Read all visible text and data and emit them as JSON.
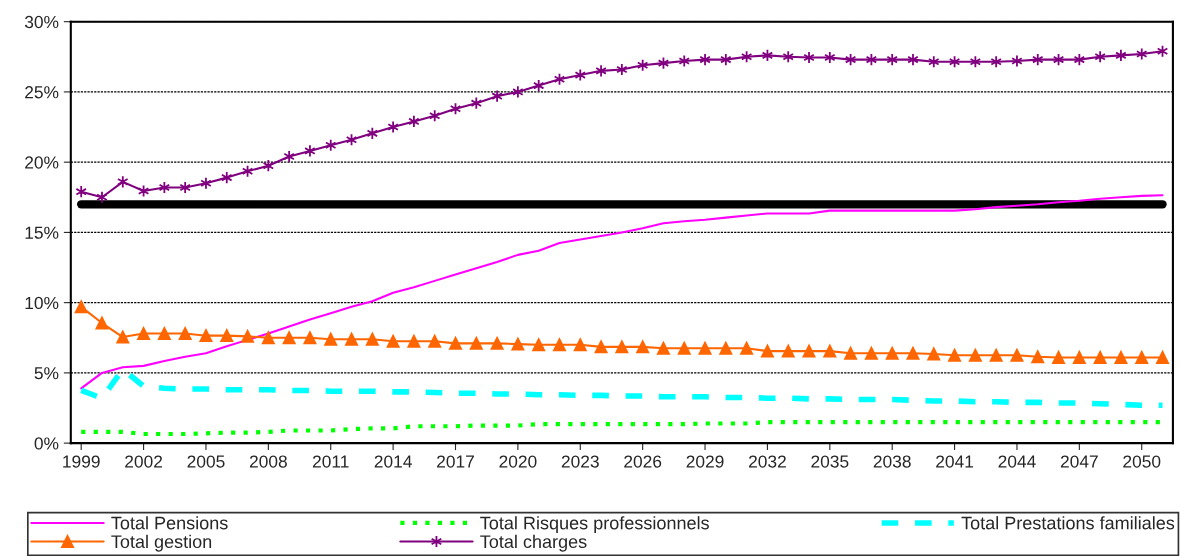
{
  "chart_data": {
    "type": "line",
    "x": [
      1999,
      2000,
      2001,
      2002,
      2003,
      2004,
      2005,
      2006,
      2007,
      2008,
      2009,
      2010,
      2011,
      2012,
      2013,
      2014,
      2015,
      2016,
      2017,
      2018,
      2019,
      2020,
      2021,
      2022,
      2023,
      2024,
      2025,
      2026,
      2027,
      2028,
      2029,
      2030,
      2031,
      2032,
      2033,
      2034,
      2035,
      2036,
      2037,
      2038,
      2039,
      2040,
      2041,
      2042,
      2043,
      2044,
      2045,
      2046,
      2047,
      2048,
      2049,
      2050,
      2051
    ],
    "series": [
      {
        "name": "Total Pensions",
        "color": "#ff00ff",
        "marker": "none",
        "line_style": "solid",
        "values": [
          3.9,
          5.0,
          5.4,
          5.5,
          5.85,
          6.15,
          6.4,
          6.9,
          7.35,
          7.8,
          8.3,
          8.8,
          9.25,
          9.7,
          10.1,
          10.7,
          11.1,
          11.55,
          12.0,
          12.45,
          12.9,
          13.4,
          13.7,
          14.25,
          14.5,
          14.75,
          15.0,
          15.3,
          15.65,
          15.8,
          15.9,
          16.05,
          16.2,
          16.35,
          16.35,
          16.35,
          16.55,
          16.55,
          16.55,
          16.55,
          16.55,
          16.55,
          16.55,
          16.65,
          16.8,
          16.9,
          17.0,
          17.15,
          17.25,
          17.4,
          17.5,
          17.6,
          17.65
        ]
      },
      {
        "name": "Total Risques professionnels",
        "color": "#00ff00",
        "marker": "none",
        "line_style": "dotted",
        "values": [
          0.8,
          0.8,
          0.8,
          0.65,
          0.65,
          0.65,
          0.7,
          0.75,
          0.75,
          0.8,
          0.9,
          0.9,
          0.9,
          1.0,
          1.05,
          1.05,
          1.2,
          1.2,
          1.2,
          1.25,
          1.25,
          1.25,
          1.35,
          1.35,
          1.35,
          1.35,
          1.35,
          1.35,
          1.35,
          1.35,
          1.4,
          1.4,
          1.4,
          1.5,
          1.5,
          1.5,
          1.5,
          1.5,
          1.5,
          1.5,
          1.5,
          1.5,
          1.5,
          1.5,
          1.5,
          1.5,
          1.5,
          1.5,
          1.5,
          1.5,
          1.5,
          1.5,
          1.5
        ]
      },
      {
        "name": "Total Prestations familiales",
        "color": "#00ffff",
        "marker": "none",
        "line_style": "dashed",
        "values": [
          3.75,
          3.2,
          5.25,
          4.05,
          3.9,
          3.85,
          3.85,
          3.8,
          3.8,
          3.8,
          3.75,
          3.75,
          3.7,
          3.7,
          3.7,
          3.65,
          3.65,
          3.6,
          3.55,
          3.55,
          3.5,
          3.5,
          3.45,
          3.45,
          3.4,
          3.4,
          3.35,
          3.35,
          3.3,
          3.3,
          3.3,
          3.25,
          3.25,
          3.2,
          3.2,
          3.15,
          3.15,
          3.1,
          3.1,
          3.1,
          3.05,
          3.0,
          3.0,
          2.95,
          2.95,
          2.9,
          2.9,
          2.85,
          2.85,
          2.8,
          2.75,
          2.7,
          2.7
        ]
      },
      {
        "name": "Total gestion",
        "color": "#ff6600",
        "marker": "triangle",
        "line_style": "solid",
        "values": [
          9.7,
          8.55,
          7.55,
          7.8,
          7.8,
          7.8,
          7.65,
          7.65,
          7.6,
          7.5,
          7.5,
          7.5,
          7.4,
          7.4,
          7.4,
          7.25,
          7.25,
          7.25,
          7.1,
          7.1,
          7.1,
          7.05,
          7.0,
          7.0,
          7.0,
          6.85,
          6.85,
          6.85,
          6.75,
          6.75,
          6.75,
          6.75,
          6.75,
          6.55,
          6.55,
          6.55,
          6.55,
          6.4,
          6.4,
          6.4,
          6.4,
          6.35,
          6.25,
          6.25,
          6.25,
          6.25,
          6.15,
          6.1,
          6.1,
          6.1,
          6.1,
          6.1,
          6.1
        ]
      },
      {
        "name": "Total charges",
        "color": "#800080",
        "marker": "cross",
        "line_style": "solid",
        "values": [
          17.9,
          17.5,
          18.6,
          17.95,
          18.2,
          18.2,
          18.5,
          18.9,
          19.35,
          19.75,
          20.4,
          20.8,
          21.2,
          21.6,
          22.05,
          22.5,
          22.9,
          23.3,
          23.8,
          24.2,
          24.7,
          25.0,
          25.45,
          25.9,
          26.2,
          26.5,
          26.6,
          26.9,
          27.05,
          27.2,
          27.3,
          27.3,
          27.5,
          27.6,
          27.5,
          27.45,
          27.45,
          27.3,
          27.3,
          27.3,
          27.3,
          27.15,
          27.15,
          27.15,
          27.15,
          27.2,
          27.3,
          27.3,
          27.3,
          27.5,
          27.6,
          27.7,
          27.9
        ]
      }
    ],
    "ref_lines": [
      {
        "axis": "y",
        "value": 17,
        "color": "#000000"
      }
    ],
    "xlim": [
      1998.5,
      2051.5
    ],
    "xticks": [
      1999,
      2002,
      2005,
      2008,
      2011,
      2014,
      2017,
      2020,
      2023,
      2026,
      2029,
      2032,
      2035,
      2038,
      2041,
      2044,
      2047,
      2050
    ],
    "ylim": [
      0,
      30
    ],
    "yticks": [
      {
        "value": 0,
        "label": "0%"
      },
      {
        "value": 5,
        "label": "5%"
      },
      {
        "value": 10,
        "label": "10%"
      },
      {
        "value": 15,
        "label": "15%"
      },
      {
        "value": 20,
        "label": "20%"
      },
      {
        "value": 25,
        "label": "25%"
      },
      {
        "value": 30,
        "label": "30%"
      }
    ],
    "grid": "y",
    "legend": "bottom"
  }
}
